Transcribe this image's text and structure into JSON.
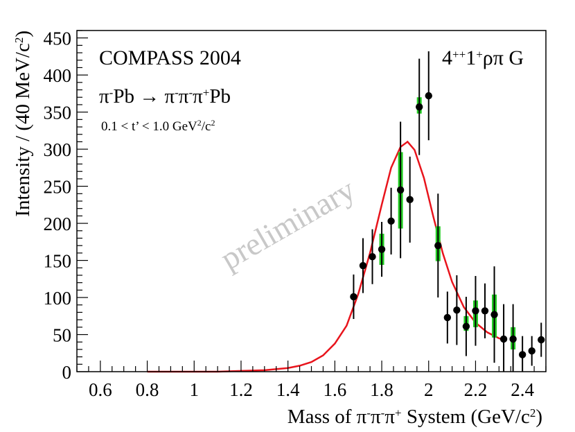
{
  "chart_data": {
    "type": "scatter",
    "title": "",
    "labels": {
      "experiment": "COMPASS 2004",
      "reaction_lhs": "π",
      "reaction_lhs_sup": "-",
      "reaction_lhs_tail": "Pb → π",
      "reaction_sup1": "-",
      "reaction_mid1": "π",
      "reaction_sup2": "-",
      "reaction_mid2": "π",
      "reaction_sup3": "+",
      "reaction_tail": "Pb",
      "t_range_prefix": "0.1 < t’ < 1.0 GeV",
      "t_range_sup": "2",
      "t_range_suffix": "/c",
      "t_range_sup2": "2",
      "wave_prefix": "4",
      "wave_sup1": "++",
      "wave_mid": "1",
      "wave_sup2": "+",
      "wave_suffix": "ρπ G",
      "watermark": "preliminary"
    },
    "xlabel": {
      "prefix": "Mass of  π",
      "sup1": "-",
      "mid1": "π",
      "sup2": "-",
      "mid2": "π",
      "sup3": "+",
      "suffix": " System (GeV/c",
      "sup4": "2",
      "close": ")"
    },
    "ylabel": {
      "prefix": "Intensity / (40 MeV/c",
      "sup": "2",
      "close": ")"
    },
    "xlim": [
      0.5,
      2.5
    ],
    "ylim": [
      0,
      460
    ],
    "x_ticks": [
      0.6,
      0.8,
      1,
      1.2,
      1.4,
      1.6,
      1.8,
      2,
      2.2,
      2.4
    ],
    "x_tick_labels": [
      "0.6",
      "0.8",
      "1",
      "1.2",
      "1.4",
      "1.6",
      "1.8",
      "2",
      "2.2",
      "2.4"
    ],
    "y_ticks": [
      0,
      50,
      100,
      150,
      200,
      250,
      300,
      350,
      400,
      450
    ],
    "y_tick_labels": [
      "0",
      "50",
      "100",
      "150",
      "200",
      "250",
      "300",
      "350",
      "400",
      "450"
    ],
    "series": [
      {
        "name": "data",
        "marker": "circle",
        "color": "#000000",
        "x": [
          1.68,
          1.72,
          1.76,
          1.8,
          1.84,
          1.88,
          1.92,
          1.96,
          2.0,
          2.04,
          2.08,
          2.12,
          2.16,
          2.2,
          2.24,
          2.28,
          2.32,
          2.36,
          2.4,
          2.44,
          2.48
        ],
        "y": [
          101,
          143,
          155,
          165,
          203,
          245,
          232,
          357,
          372,
          170,
          73,
          83,
          61,
          82,
          82,
          77,
          44,
          44,
          23,
          28,
          43
        ],
        "yerr": [
          30,
          37,
          37,
          37,
          45,
          92,
          58,
          65,
          60,
          70,
          35,
          47,
          40,
          47,
          37,
          65,
          47,
          47,
          25,
          20,
          23
        ],
        "syst": [
          null,
          null,
          null,
          [
            144,
            186
          ],
          null,
          [
            193,
            296
          ],
          null,
          [
            348,
            370
          ],
          null,
          [
            149,
            196
          ],
          null,
          null,
          [
            55,
            75
          ],
          [
            60,
            96
          ],
          null,
          [
            46,
            104
          ],
          null,
          [
            30,
            60
          ],
          null,
          null,
          null
        ]
      },
      {
        "name": "fit",
        "type": "line",
        "color": "#e8141c",
        "x": [
          0.8,
          0.9,
          1.0,
          1.1,
          1.2,
          1.3,
          1.4,
          1.45,
          1.5,
          1.55,
          1.6,
          1.65,
          1.7,
          1.75,
          1.8,
          1.84,
          1.88,
          1.91,
          1.94,
          1.98,
          2.02,
          2.06,
          2.1,
          2.15,
          2.2,
          2.25,
          2.3,
          2.33
        ],
        "y": [
          0,
          0,
          0,
          0,
          1,
          2,
          5,
          8,
          13,
          22,
          38,
          62,
          105,
          160,
          225,
          275,
          303,
          310,
          299,
          261,
          209,
          160,
          121,
          87,
          66,
          53,
          45,
          42
        ]
      }
    ],
    "syst_color": "#22cc22"
  }
}
